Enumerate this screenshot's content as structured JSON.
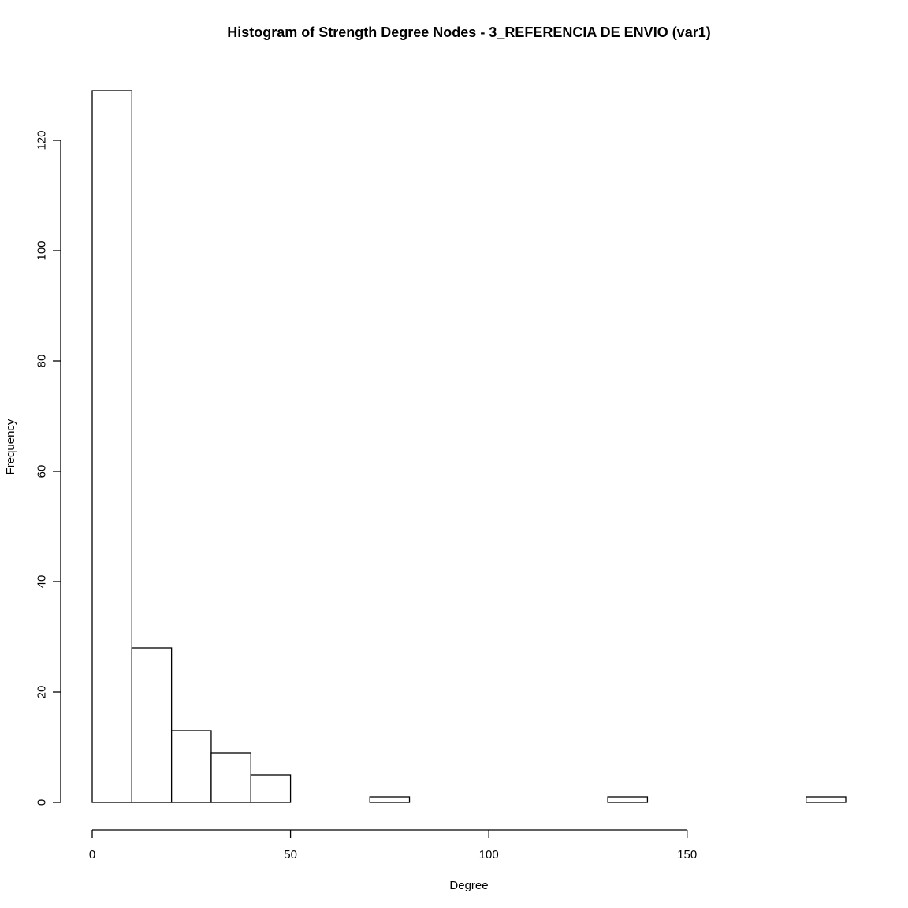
{
  "chart_data": {
    "type": "bar",
    "title": "Histogram of Strength Degree Nodes - 3_REFERENCIA DE ENVIO (var1)",
    "xlabel": "Degree",
    "ylabel": "Frequency",
    "bin_edges": [
      0,
      10,
      20,
      30,
      40,
      50,
      60,
      70,
      80,
      90,
      100,
      110,
      120,
      130,
      140,
      150,
      160,
      170,
      180,
      190
    ],
    "values": [
      129,
      28,
      13,
      9,
      5,
      0,
      0,
      1,
      0,
      0,
      0,
      0,
      0,
      1,
      0,
      0,
      0,
      0,
      1
    ],
    "xlim": [
      0,
      190
    ],
    "ylim": [
      0,
      129
    ],
    "x_ticks": [
      0,
      50,
      100,
      150
    ],
    "x_tick_labels": [
      "0",
      "50",
      "100",
      "150"
    ],
    "y_ticks": [
      0,
      20,
      40,
      60,
      80,
      100,
      120
    ],
    "y_tick_labels": [
      "0",
      "20",
      "40",
      "60",
      "80",
      "100",
      "120"
    ],
    "grid": false,
    "legend": "none",
    "colors": {
      "bar_fill": "#ffffff",
      "bar_stroke": "#000000"
    }
  }
}
